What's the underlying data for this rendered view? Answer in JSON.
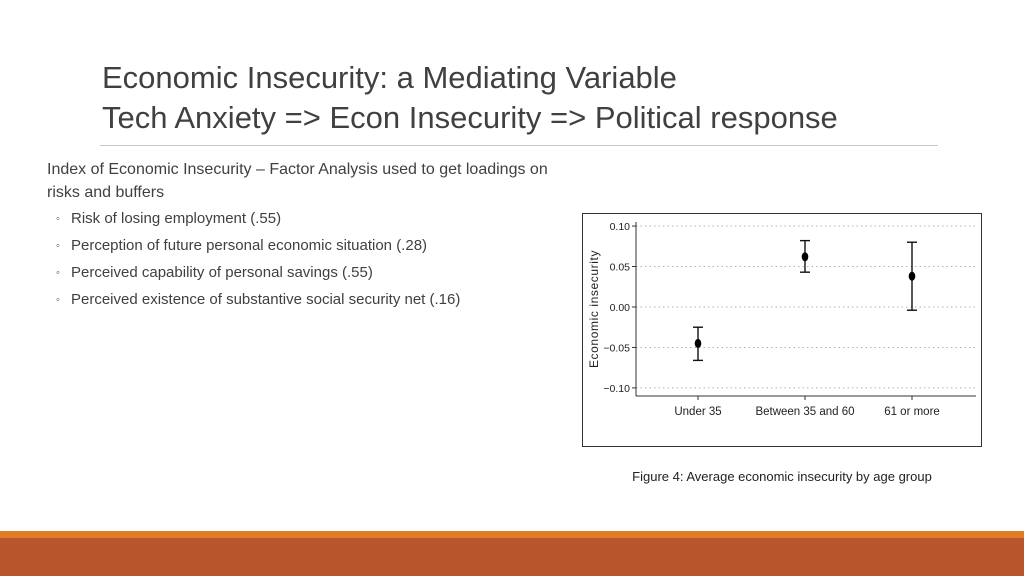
{
  "slide": {
    "title_line1": "Economic Insecurity:  a Mediating Variable",
    "title_line2": "Tech Anxiety => Econ Insecurity => Political  response",
    "intro": "Index of Economic Insecurity – Factor Analysis used to get loadings on risks and buffers",
    "bullet_marker": "◦",
    "bullets": [
      "Risk of losing employment (.55)",
      "Perception of future personal economic situation (.28)",
      "Perceived capability of personal savings (.55)",
      "Perceived existence of substantive social security net (.16)"
    ],
    "figure_caption": "Figure 4: Average economic insecurity by age group",
    "colors": {
      "title": "#404040",
      "footer_strip": "#e07b26",
      "footer_bar": "#b8552c"
    }
  },
  "chart_data": {
    "type": "scatter",
    "title": "",
    "xlabel": "",
    "ylabel": "Economic insecurity",
    "categories": [
      "Under 35",
      "Between 35 and 60",
      "61 or more"
    ],
    "values": [
      -0.045,
      0.062,
      0.038
    ],
    "error_low": [
      -0.066,
      0.043,
      -0.004
    ],
    "error_high": [
      -0.025,
      0.082,
      0.08
    ],
    "ylim": [
      -0.11,
      0.105
    ],
    "yticks": [
      0.1,
      0.05,
      0.0,
      -0.05,
      -0.1
    ],
    "ytick_labels": [
      "0.10",
      "0.05",
      "0.00",
      "−0.05",
      "−0.10"
    ],
    "grid": "horizontal-dotted",
    "legend": "none"
  }
}
